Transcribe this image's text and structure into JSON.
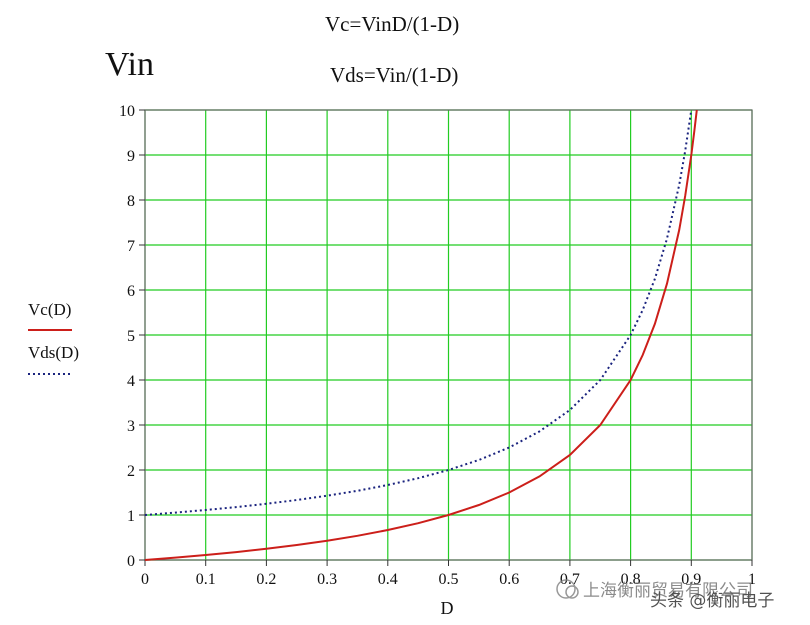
{
  "chart_data": {
    "type": "line",
    "header": {
      "left_label": "Vin",
      "formula_top": "Vc=VinD/(1-D)",
      "formula_bottom": "Vds=Vin/(1-D)"
    },
    "xlabel": "D",
    "ylabel": "",
    "xlim": [
      0,
      1
    ],
    "ylim": [
      0,
      10
    ],
    "x_ticks": [
      "0",
      "0.1",
      "0.2",
      "0.3",
      "0.4",
      "0.5",
      "0.6",
      "0.7",
      "0.8",
      "0.9",
      "1"
    ],
    "y_ticks": [
      "0",
      "1",
      "2",
      "3",
      "4",
      "5",
      "6",
      "7",
      "8",
      "9",
      "10"
    ],
    "grid": true,
    "legend_position": "left",
    "series": [
      {
        "name": "Vc(D)",
        "color": "#cc1f1a",
        "style": "solid",
        "x": [
          0,
          0.05,
          0.1,
          0.15,
          0.2,
          0.25,
          0.3,
          0.35,
          0.4,
          0.45,
          0.5,
          0.55,
          0.6,
          0.65,
          0.7,
          0.75,
          0.8,
          0.82,
          0.84,
          0.86,
          0.88,
          0.89,
          0.9,
          0.905,
          0.909
        ],
        "values": [
          0,
          0.053,
          0.111,
          0.176,
          0.25,
          0.333,
          0.429,
          0.538,
          0.667,
          0.818,
          1.0,
          1.222,
          1.5,
          1.857,
          2.333,
          3.0,
          4.0,
          4.556,
          5.25,
          6.143,
          7.333,
          8.091,
          9.0,
          9.526,
          10.0
        ]
      },
      {
        "name": "Vds(D)",
        "color": "#1a237e",
        "style": "dotted",
        "x": [
          0,
          0.05,
          0.1,
          0.15,
          0.2,
          0.25,
          0.3,
          0.35,
          0.4,
          0.45,
          0.5,
          0.55,
          0.6,
          0.65,
          0.7,
          0.75,
          0.8,
          0.82,
          0.84,
          0.86,
          0.88,
          0.89,
          0.9
        ],
        "values": [
          1.0,
          1.053,
          1.111,
          1.176,
          1.25,
          1.333,
          1.429,
          1.538,
          1.667,
          1.818,
          2.0,
          2.222,
          2.5,
          2.857,
          3.333,
          4.0,
          5.0,
          5.556,
          6.25,
          7.143,
          8.333,
          9.091,
          10.0
        ]
      }
    ]
  },
  "watermark": {
    "line1": "上海衡丽贸易有限公司",
    "line2": "头条 @衡丽电子"
  }
}
